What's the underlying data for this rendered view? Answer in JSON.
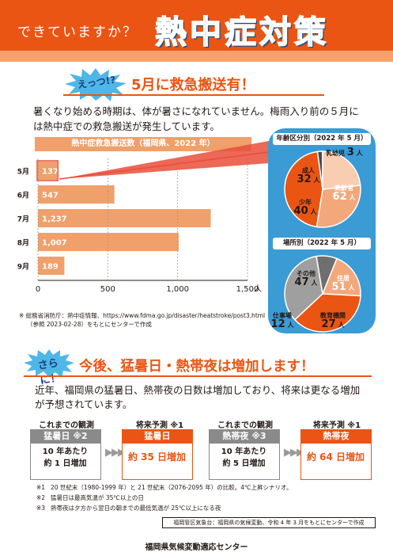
{
  "header": {
    "question": "できていますか？",
    "title": "熱中症対策"
  },
  "section1": {
    "burst": "えっつ!?",
    "title": "5月に救急搬送有！",
    "intro": "暑くなり始める時期は、体が暑さになれていません。梅雨入り前の５月には熱中症での救急搬送が発生しています。"
  },
  "bar_chart_header": "熱中症救急搬送数（福岡県、2022 年）",
  "pie_age": {
    "title": "年齢区分別（2022 年 5 月）",
    "labels": [
      {
        "name": "乳幼児",
        "value": "3",
        "unit": "人"
      },
      {
        "name": "成人",
        "value": "32",
        "unit": "人"
      },
      {
        "name": "高齢者",
        "value": "62",
        "unit": "人"
      },
      {
        "name": "少年",
        "value": "40",
        "unit": "人"
      }
    ]
  },
  "pie_place": {
    "title": "場所別（2022 年 5 月）",
    "labels": [
      {
        "name": "その他",
        "value": "47",
        "unit": "人"
      },
      {
        "name": "住居",
        "value": "51",
        "unit": "人"
      },
      {
        "name": "仕事場",
        "value": "12",
        "unit": "人"
      },
      {
        "name": "教育機関",
        "value": "27",
        "unit": "人"
      }
    ]
  },
  "note1": {
    "line1": "※ 総務省消防庁：熱中症情報、https://www.fdma.go.jp/disaster/heatstroke/post3.html",
    "line2": "（参照 2023-02-28）をもとにセンターで作成"
  },
  "section2": {
    "burst": "さらに！",
    "title": "今後、猛暑日・熱帯夜は増加します！",
    "intro": "近年、福岡県の猛暑日、熱帯夜の日数は増加しており、将来は更なる増加が予想されています。"
  },
  "comparisons": [
    {
      "obs_label": "これまでの観測",
      "obs_tag": "猛暑日 ※2",
      "obs_line1": "10 年あたり",
      "obs_line2": "約 1 日増加",
      "fut_label": "将来予測 ※1",
      "fut_tag": "猛暑日",
      "fut_value": "約 35 日増加"
    },
    {
      "obs_label": "これまでの観測",
      "obs_tag": "熱帯夜 ※3",
      "obs_line1": "10 年あたり",
      "obs_line2": "約 5 日増加",
      "fut_label": "将来予測 ※1",
      "fut_tag": "熱帯夜",
      "fut_value": "約 64 日増加"
    }
  ],
  "notes2": [
    {
      "key": "※1",
      "text": "20 世紀末（1980-1999 年）と 21 世紀末（2076-2095 年）の比較。4℃上昇シナリオ。"
    },
    {
      "key": "※2",
      "text": "猛暑日は最高気温が 35℃以上の日"
    },
    {
      "key": "※3",
      "text": "熱帯夜は夕方から翌日の朝までの最低気温が 25℃以上になる夜"
    }
  ],
  "source2": "福岡管区気象台：福岡県の気候変動、令和 4 年 3 月をもとにセンターで作成",
  "footer": "福岡県気候変動適応センター",
  "colors": {
    "brand_orange": "#ea5514",
    "bar_orange": "#f0a06a",
    "panel_blue": "#3a9bd5",
    "pie_light_orange": "#f3a87c",
    "pie_gray": "#9f9f9f",
    "pie_peach": "#f8cdb0"
  },
  "chart_data": [
    {
      "type": "bar",
      "orientation": "horizontal",
      "title": "熱中症救急搬送数（福岡県、2022 年）",
      "categories": [
        "5月",
        "6月",
        "7月",
        "8月",
        "9月"
      ],
      "values": [
        137,
        547,
        1237,
        1007,
        189
      ],
      "value_labels": [
        "137",
        "547",
        "1,237",
        "1,007",
        "189"
      ],
      "xlim": [
        0,
        1500
      ],
      "xticks": [
        0,
        500,
        1000,
        1500
      ],
      "xtick_labels": [
        "0",
        "500",
        "1,000",
        "1,500"
      ],
      "x_unit": "人",
      "highlight_category": "5月"
    },
    {
      "type": "pie",
      "title": "年齢区分別（2022 年 5 月）",
      "categories": [
        "乳幼児",
        "成人",
        "少年",
        "高齢者"
      ],
      "values": [
        3,
        32,
        40,
        62
      ],
      "unit": "人"
    },
    {
      "type": "pie",
      "title": "場所別（2022 年 5 月）",
      "categories": [
        "その他",
        "仕事場",
        "教育機関",
        "住居"
      ],
      "values": [
        47,
        12,
        27,
        51
      ],
      "unit": "人"
    }
  ]
}
